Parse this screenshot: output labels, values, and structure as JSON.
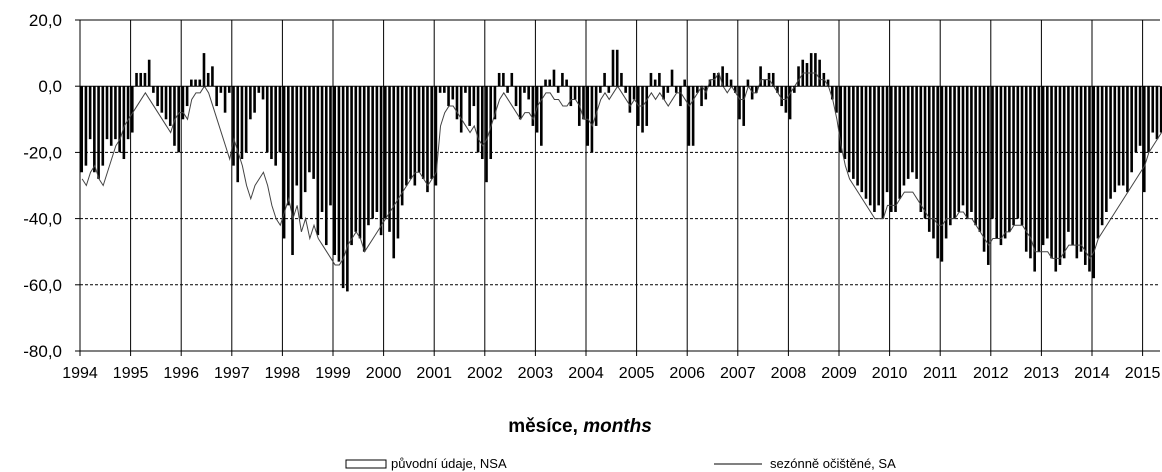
{
  "chart_data": {
    "type": "bar",
    "xlabel_cz": "měsíce, ",
    "xlabel_en": "months",
    "ylim": [
      -80,
      20
    ],
    "y_ticks": [
      "20,0",
      "0,0",
      "-20,0",
      "-40,0",
      "-60,0",
      "-80,0"
    ],
    "y_tick_values": [
      20,
      0,
      -20,
      -40,
      -60,
      -80
    ],
    "x_tick_labels": [
      "1994",
      "1995",
      "1996",
      "1997",
      "1998",
      "1999",
      "2000",
      "2001",
      "2002",
      "2003",
      "2004",
      "2005",
      "2006",
      "2007",
      "2008",
      "2009",
      "2010",
      "2011",
      "2012",
      "2013",
      "2014",
      "2015"
    ],
    "gridlines": "dashed at -20, -40, -60; vertical solid at year boundaries",
    "legend": [
      {
        "name": "původní údaje, NSA",
        "style": "bar"
      },
      {
        "name": "sezónně očištěné, SA",
        "style": "line"
      }
    ],
    "series": [
      {
        "name": "původní údaje, NSA",
        "type": "bar",
        "values": [
          -26,
          -24,
          -16,
          -26,
          -28,
          -24,
          -16,
          -18,
          -16,
          -20,
          -22,
          -16,
          -14,
          4,
          4,
          4,
          8,
          -2,
          -6,
          -8,
          -10,
          -12,
          -18,
          -20,
          -10,
          -6,
          2,
          2,
          2,
          10,
          4,
          6,
          -6,
          -2,
          -8,
          -2,
          -24,
          -29,
          -22,
          -20,
          -10,
          -8,
          -2,
          -4,
          -20,
          -22,
          -24,
          -20,
          -46,
          -36,
          -51,
          -30,
          -40,
          -32,
          -26,
          -28,
          -45,
          -38,
          -48,
          -36,
          -51,
          -53,
          -61,
          -62,
          -48,
          -44,
          -46,
          -50,
          -42,
          -40,
          -38,
          -45,
          -40,
          -44,
          -52,
          -46,
          -36,
          -30,
          -28,
          -30,
          -26,
          -28,
          -32,
          -28,
          -30,
          -2,
          -2,
          -6,
          -4,
          -10,
          -14,
          -2,
          -12,
          -6,
          -20,
          -22,
          -29,
          -22,
          -10,
          4,
          4,
          -2,
          4,
          -6,
          -10,
          -2,
          -4,
          -12,
          -14,
          -18,
          2,
          2,
          5,
          -2,
          4,
          2,
          -6,
          -4,
          -12,
          -10,
          -18,
          -20,
          -12,
          -2,
          4,
          -2,
          11,
          11,
          4,
          -2,
          -8,
          -4,
          -12,
          -14,
          -12,
          4,
          2,
          4,
          -4,
          -2,
          5,
          -2,
          -6,
          2,
          -18,
          -18,
          -2,
          -6,
          -4,
          2,
          4,
          4,
          6,
          4,
          2,
          -2,
          -10,
          -12,
          2,
          -4,
          -2,
          6,
          2,
          4,
          4,
          -2,
          -6,
          -8,
          -10,
          -2,
          6,
          8,
          7,
          10,
          10,
          8,
          4,
          2,
          -4,
          -8,
          -20,
          -22,
          -26,
          -28,
          -30,
          -32,
          -34,
          -36,
          -38,
          -36,
          -40,
          -32,
          -38,
          -38,
          -34,
          -30,
          -28,
          -26,
          -28,
          -38,
          -40,
          -44,
          -46,
          -52,
          -53,
          -46,
          -42,
          -40,
          -38,
          -36,
          -40,
          -38,
          -42,
          -44,
          -50,
          -54,
          -40,
          -46,
          -48,
          -46,
          -44,
          -42,
          -40,
          -42,
          -50,
          -52,
          -56,
          -50,
          -48,
          -46,
          -52,
          -56,
          -54,
          -52,
          -44,
          -48,
          -52,
          -50,
          -54,
          -56,
          -58,
          -46,
          -42,
          -38,
          -34,
          -32,
          -30,
          -30,
          -32,
          -26,
          -20,
          -18,
          -32,
          -20,
          -14,
          -16,
          -14,
          -16,
          -18,
          -20
        ]
      },
      {
        "name": "sezónně očištěné, SA",
        "type": "line",
        "values": [
          -28,
          -30,
          -26,
          -24,
          -28,
          -30,
          -26,
          -22,
          -18,
          -16,
          -12,
          -10,
          -8,
          -6,
          -4,
          -2,
          -4,
          -6,
          -8,
          -10,
          -12,
          -14,
          -10,
          -8,
          -8,
          -10,
          -4,
          -2,
          -2,
          0,
          -2,
          -6,
          -10,
          -14,
          -18,
          -22,
          -16,
          -20,
          -24,
          -30,
          -34,
          -30,
          -28,
          -26,
          -30,
          -36,
          -40,
          -42,
          -38,
          -34,
          -40,
          -36,
          -44,
          -40,
          -46,
          -42,
          -46,
          -48,
          -50,
          -52,
          -54,
          -54,
          -52,
          -48,
          -46,
          -44,
          -46,
          -50,
          -48,
          -46,
          -44,
          -42,
          -40,
          -38,
          -36,
          -34,
          -32,
          -30,
          -28,
          -26,
          -26,
          -28,
          -30,
          -28,
          -26,
          -12,
          -8,
          -6,
          -6,
          -8,
          -10,
          -12,
          -14,
          -12,
          -16,
          -18,
          -16,
          -12,
          -8,
          -4,
          -2,
          -4,
          -6,
          -8,
          -10,
          -8,
          -8,
          -10,
          -6,
          -4,
          -2,
          -2,
          -4,
          -4,
          -6,
          -6,
          -4,
          -4,
          -6,
          -10,
          -10,
          -12,
          -8,
          -4,
          -2,
          -4,
          -2,
          0,
          -2,
          -4,
          -6,
          -4,
          -6,
          -6,
          -4,
          -2,
          -4,
          -2,
          -4,
          -6,
          -4,
          -2,
          -2,
          -4,
          -6,
          -4,
          -2,
          0,
          -2,
          2,
          2,
          4,
          0,
          -2,
          0,
          -2,
          -4,
          -4,
          0,
          -2,
          -2,
          2,
          2,
          2,
          0,
          -2,
          -4,
          -4,
          -2,
          0,
          2,
          4,
          4,
          4,
          4,
          2,
          2,
          0,
          -4,
          -10,
          -18,
          -24,
          -28,
          -30,
          -32,
          -34,
          -36,
          -38,
          -40,
          -40,
          -40,
          -36,
          -36,
          -36,
          -34,
          -32,
          -32,
          -32,
          -34,
          -36,
          -38,
          -40,
          -40,
          -42,
          -42,
          -40,
          -40,
          -40,
          -38,
          -38,
          -40,
          -40,
          -42,
          -44,
          -46,
          -48,
          -46,
          -46,
          -46,
          -44,
          -44,
          -42,
          -42,
          -42,
          -44,
          -46,
          -50,
          -50,
          -50,
          -50,
          -52,
          -52,
          -52,
          -50,
          -48,
          -48,
          -48,
          -48,
          -50,
          -52,
          -50,
          -46,
          -44,
          -42,
          -40,
          -38,
          -36,
          -34,
          -32,
          -30,
          -28,
          -26,
          -24,
          -20,
          -18,
          -16,
          -14,
          -14,
          -16,
          -18
        ]
      }
    ]
  }
}
